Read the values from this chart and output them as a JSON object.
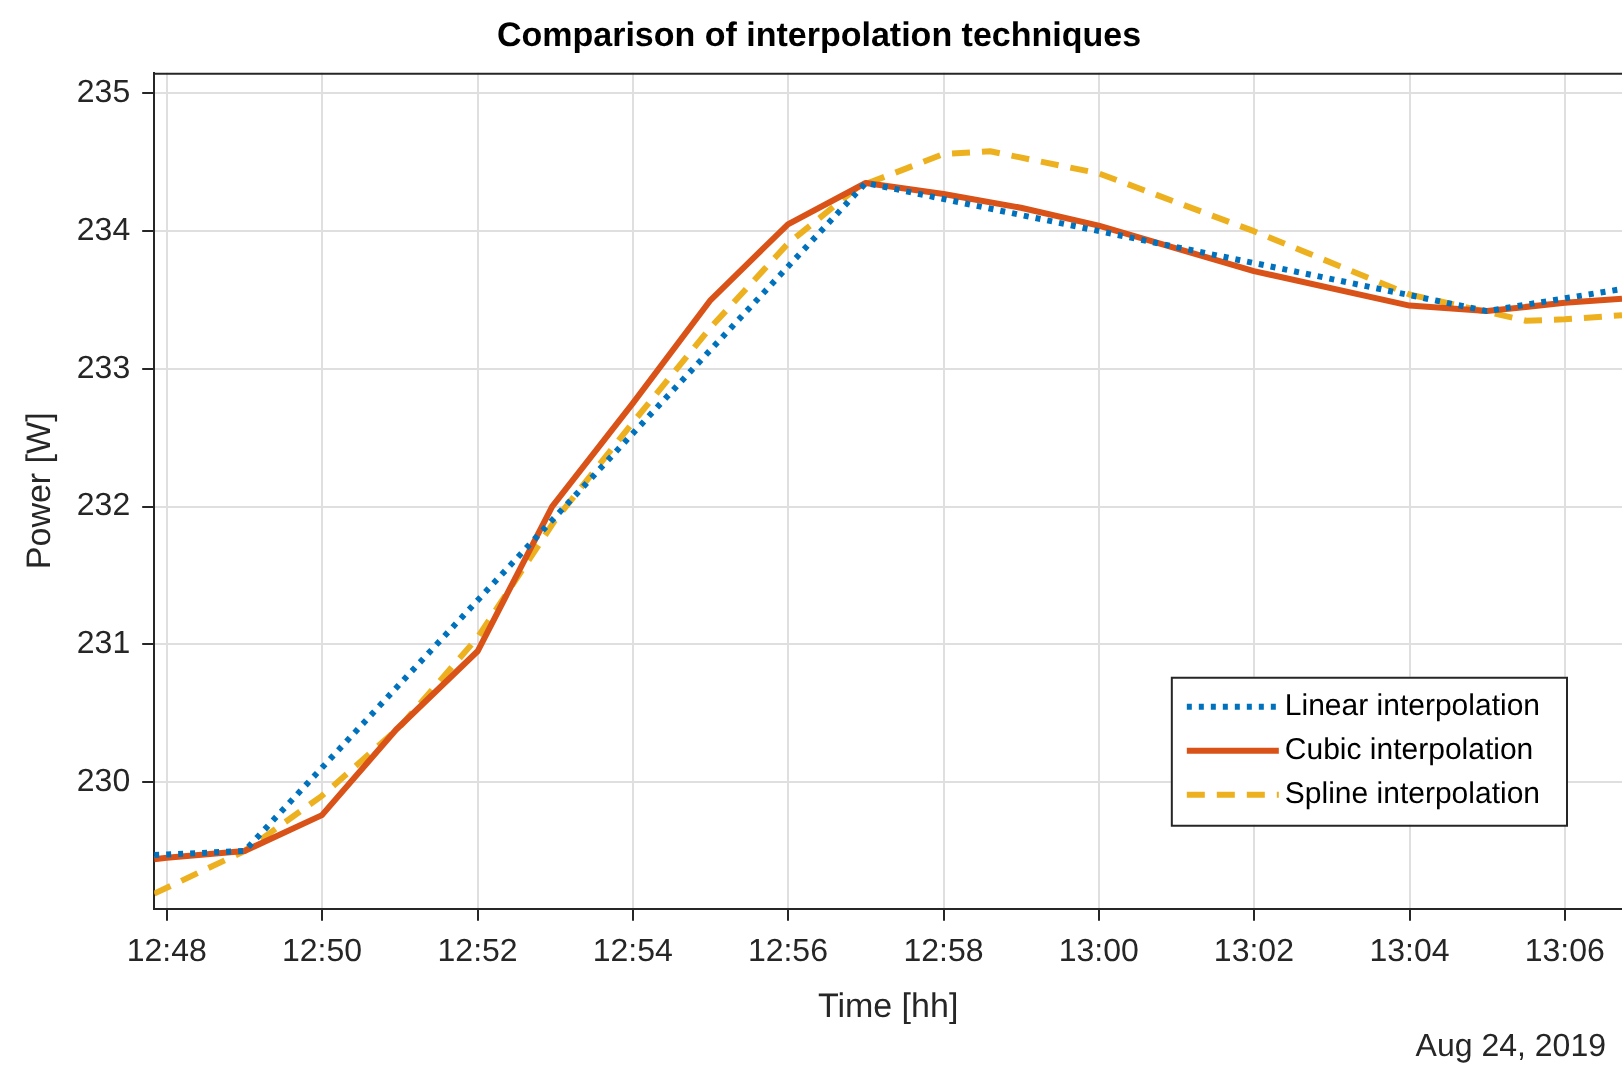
{
  "chart_data": {
    "type": "line",
    "title": "Comparison of interpolation techniques",
    "xlabel": "Time [hh]",
    "ylabel": "Power [W]",
    "annotations": [
      "Aug 24, 2019"
    ],
    "xlim": [
      12.7973,
      13.1123
    ],
    "ylim": [
      229.08,
      235.15
    ],
    "xticks": [
      {
        "value": 12.8,
        "label": "12:48"
      },
      {
        "value": 12.8333,
        "label": "12:50"
      },
      {
        "value": 12.8667,
        "label": "12:52"
      },
      {
        "value": 12.9,
        "label": "12:54"
      },
      {
        "value": 12.9333,
        "label": "12:56"
      },
      {
        "value": 12.9667,
        "label": "12:58"
      },
      {
        "value": 13.0,
        "label": "13:00"
      },
      {
        "value": 13.0333,
        "label": "13:02"
      },
      {
        "value": 13.0667,
        "label": "13:04"
      },
      {
        "value": 13.1,
        "label": "13:06"
      }
    ],
    "yticks": [
      230,
      231,
      232,
      233,
      234,
      235
    ],
    "grid": true,
    "legend": "bottom right",
    "series": [
      {
        "name": "Linear interpolation",
        "color": "#0072bd",
        "line_style": "dotted",
        "x": [
          12.7973,
          12.8167,
          12.95,
          13.0833,
          13.1123
        ],
        "values": [
          229.47,
          229.5,
          234.35,
          233.42,
          233.58
        ]
      },
      {
        "name": "Cubic interpolation",
        "color": "#d95319",
        "line_style": "solid",
        "x": [
          12.7973,
          12.8,
          12.8167,
          12.8333,
          12.8492,
          12.8667,
          12.8827,
          12.9,
          12.9167,
          12.9333,
          12.95,
          12.9667,
          12.9833,
          13.0,
          13.0333,
          13.0667,
          13.0833,
          13.1,
          13.1123
        ],
        "values": [
          229.44,
          229.45,
          229.5,
          229.76,
          230.38,
          230.95,
          232.0,
          232.75,
          233.5,
          234.05,
          234.35,
          234.27,
          234.17,
          234.04,
          233.71,
          233.46,
          233.42,
          233.48,
          233.51
        ]
      },
      {
        "name": "Spline interpolation",
        "color": "#edb120",
        "line_style": "dashed",
        "x": [
          12.7973,
          12.8167,
          12.8333,
          12.85,
          12.8667,
          12.8833,
          12.9,
          12.9167,
          12.9333,
          12.9483,
          12.9667,
          12.9767,
          13.0,
          13.0333,
          13.0667,
          13.0917,
          13.1,
          13.1123
        ],
        "values": [
          229.19,
          229.5,
          229.9,
          230.4,
          231.05,
          231.9,
          232.61,
          233.3,
          233.91,
          234.32,
          234.56,
          234.58,
          234.42,
          234.0,
          233.54,
          233.35,
          233.36,
          233.39
        ]
      }
    ]
  }
}
